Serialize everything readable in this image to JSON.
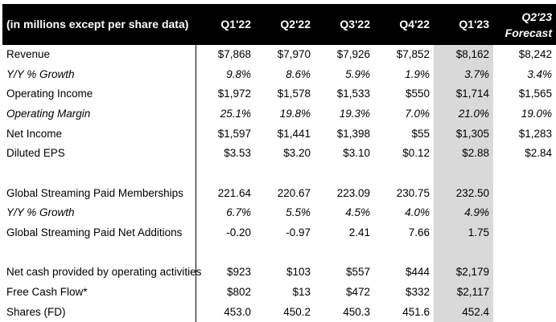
{
  "header": {
    "label": "(in millions except per share data)",
    "columns": [
      "Q1'22",
      "Q2'22",
      "Q3'22",
      "Q4'22",
      "Q1'23"
    ],
    "forecast_line1": "Q2'23",
    "forecast_line2": "Forecast"
  },
  "rows": [
    {
      "label": "Revenue",
      "values": [
        "$7,868",
        "$7,970",
        "$7,926",
        "$7,852",
        "$8,162",
        "$8,242"
      ],
      "italic": false
    },
    {
      "label": "Y/Y % Growth",
      "values": [
        "9.8%",
        "8.6%",
        "5.9%",
        "1.9%",
        "3.7%",
        "3.4%"
      ],
      "italic": true
    },
    {
      "label": "Operating Income",
      "values": [
        "$1,972",
        "$1,578",
        "$1,533",
        "$550",
        "$1,714",
        "$1,565"
      ],
      "italic": false
    },
    {
      "label": "Operating Margin",
      "values": [
        "25.1%",
        "19.8%",
        "19.3%",
        "7.0%",
        "21.0%",
        "19.0%"
      ],
      "italic": true
    },
    {
      "label": "Net Income",
      "values": [
        "$1,597",
        "$1,441",
        "$1,398",
        "$55",
        "$1,305",
        "$1,283"
      ],
      "italic": false
    },
    {
      "label": "Diluted EPS",
      "values": [
        "$3.53",
        "$3.20",
        "$3.10",
        "$0.12",
        "$2.88",
        "$2.84"
      ],
      "italic": false
    },
    {
      "label": "",
      "values": [
        "",
        "",
        "",
        "",
        "",
        ""
      ],
      "italic": false
    },
    {
      "label": "Global Streaming Paid Memberships",
      "values": [
        "221.64",
        "220.67",
        "223.09",
        "230.75",
        "232.50",
        ""
      ],
      "italic": false
    },
    {
      "label": "Y/Y % Growth",
      "values": [
        "6.7%",
        "5.5%",
        "4.5%",
        "4.0%",
        "4.9%",
        ""
      ],
      "italic": true
    },
    {
      "label": "Global Streaming Paid Net Additions",
      "values": [
        "-0.20",
        "-0.97",
        "2.41",
        "7.66",
        "1.75",
        ""
      ],
      "italic": false
    },
    {
      "label": "",
      "values": [
        "",
        "",
        "",
        "",
        "",
        ""
      ],
      "italic": false
    },
    {
      "label": "Net cash provided by operating activities",
      "values": [
        "$923",
        "$103",
        "$557",
        "$444",
        "$2,179",
        ""
      ],
      "italic": false
    },
    {
      "label": "Free Cash Flow*",
      "values": [
        "$802",
        "$13",
        "$472",
        "$332",
        "$2,117",
        ""
      ],
      "italic": false
    },
    {
      "label": "Shares (FD)",
      "values": [
        "453.0",
        "450.2",
        "450.3",
        "451.6",
        "452.4",
        ""
      ],
      "italic": false
    }
  ]
}
